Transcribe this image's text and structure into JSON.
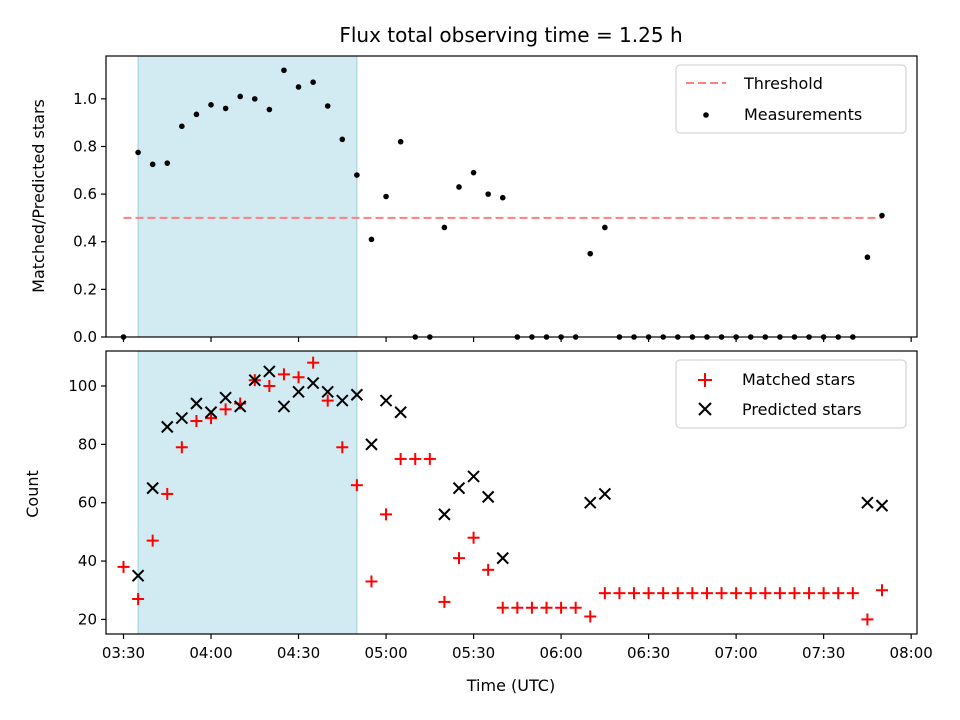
{
  "chart_data": [
    {
      "type": "scatter",
      "title": "Flux total observing time = 1.25 h",
      "ylabel": "Matched/Predicted stars",
      "xlim": [
        "03:24",
        "08:02"
      ],
      "ylim": [
        0,
        1.18
      ],
      "yticks": [
        "0.0",
        "0.2",
        "0.4",
        "0.6",
        "0.8",
        "1.0"
      ],
      "shaded_span": [
        "03:35",
        "04:50"
      ],
      "threshold": {
        "name": "Threshold",
        "value": 0.5,
        "x_range": [
          "03:30",
          "07:50"
        ],
        "color": "#ff7f7f"
      },
      "series": [
        {
          "name": "Measurements",
          "color": "#000000",
          "x": [
            "03:30",
            "03:35",
            "03:40",
            "03:45",
            "03:50",
            "03:55",
            "04:00",
            "04:05",
            "04:10",
            "04:15",
            "04:20",
            "04:25",
            "04:30",
            "04:35",
            "04:40",
            "04:45",
            "04:50",
            "04:55",
            "05:00",
            "05:05",
            "05:10",
            "05:15",
            "05:20",
            "05:25",
            "05:30",
            "05:35",
            "05:40",
            "05:45",
            "05:50",
            "05:55",
            "06:00",
            "06:05",
            "06:10",
            "06:15",
            "06:20",
            "06:25",
            "06:30",
            "06:35",
            "06:40",
            "06:45",
            "06:50",
            "06:55",
            "07:00",
            "07:05",
            "07:10",
            "07:15",
            "07:20",
            "07:25",
            "07:30",
            "07:35",
            "07:40",
            "07:45",
            "07:50"
          ],
          "y": [
            0.0,
            0.775,
            0.725,
            0.73,
            0.885,
            0.935,
            0.975,
            0.96,
            1.01,
            1.0,
            0.955,
            1.12,
            1.05,
            1.07,
            0.97,
            0.83,
            0.68,
            0.41,
            0.59,
            0.82,
            0.0,
            0.0,
            0.46,
            0.63,
            0.69,
            0.6,
            0.585,
            0.0,
            0.0,
            0.0,
            0.0,
            0.0,
            0.35,
            0.46,
            0.0,
            0.0,
            0.0,
            0.0,
            0.0,
            0.0,
            0.0,
            0.0,
            0.0,
            0.0,
            0.0,
            0.0,
            0.0,
            0.0,
            0.0,
            0.0,
            0.0,
            0.335,
            0.51
          ]
        }
      ],
      "legend": "top-right"
    },
    {
      "type": "scatter",
      "xlabel": "Time (UTC)",
      "ylabel": "Count",
      "xlim": [
        "03:24",
        "08:02"
      ],
      "ylim": [
        15,
        112
      ],
      "yticks": [
        "20",
        "40",
        "60",
        "80",
        "100"
      ],
      "xticks": [
        "03:30",
        "04:00",
        "04:30",
        "05:00",
        "05:30",
        "06:00",
        "06:30",
        "07:00",
        "07:30",
        "08:00"
      ],
      "shaded_span": [
        "03:35",
        "04:50"
      ],
      "series": [
        {
          "name": "Matched stars",
          "marker": "plus",
          "color": "#ff0000",
          "x": [
            "03:30",
            "03:35",
            "03:40",
            "03:45",
            "03:50",
            "03:55",
            "04:00",
            "04:05",
            "04:10",
            "04:15",
            "04:20",
            "04:25",
            "04:30",
            "04:35",
            "04:40",
            "04:45",
            "04:50",
            "04:55",
            "05:00",
            "05:05",
            "05:10",
            "05:15",
            "05:20",
            "05:25",
            "05:30",
            "05:35",
            "05:40",
            "05:45",
            "05:50",
            "05:55",
            "06:00",
            "06:05",
            "06:10",
            "06:15",
            "06:20",
            "06:25",
            "06:30",
            "06:35",
            "06:40",
            "06:45",
            "06:50",
            "06:55",
            "07:00",
            "07:05",
            "07:10",
            "07:15",
            "07:20",
            "07:25",
            "07:30",
            "07:35",
            "07:40",
            "07:45",
            "07:50"
          ],
          "y": [
            38,
            27,
            47,
            63,
            79,
            88,
            89,
            92,
            94,
            102,
            100,
            104,
            103,
            108,
            95,
            79,
            66,
            33,
            56,
            75,
            75,
            75,
            26,
            41,
            48,
            37,
            24,
            24,
            24,
            24,
            24,
            24,
            21,
            29,
            29,
            29,
            29,
            29,
            29,
            29,
            29,
            29,
            29,
            29,
            29,
            29,
            29,
            29,
            29,
            29,
            29,
            20,
            30
          ]
        },
        {
          "name": "Predicted stars",
          "marker": "x",
          "color": "#000000",
          "x": [
            "03:35",
            "03:40",
            "03:45",
            "03:50",
            "03:55",
            "04:00",
            "04:05",
            "04:10",
            "04:15",
            "04:20",
            "04:25",
            "04:30",
            "04:35",
            "04:40",
            "04:45",
            "04:50",
            "04:55",
            "05:00",
            "05:05",
            "05:20",
            "05:25",
            "05:30",
            "05:35",
            "05:40",
            "06:10",
            "06:15",
            "07:45",
            "07:50"
          ],
          "y": [
            35,
            65,
            86,
            89,
            94,
            91,
            96,
            93,
            102,
            105,
            93,
            98,
            101,
            98,
            95,
            97,
            80,
            95,
            91,
            56,
            65,
            69,
            62,
            41,
            60,
            63,
            60,
            59
          ]
        }
      ],
      "legend": "top-right"
    }
  ]
}
